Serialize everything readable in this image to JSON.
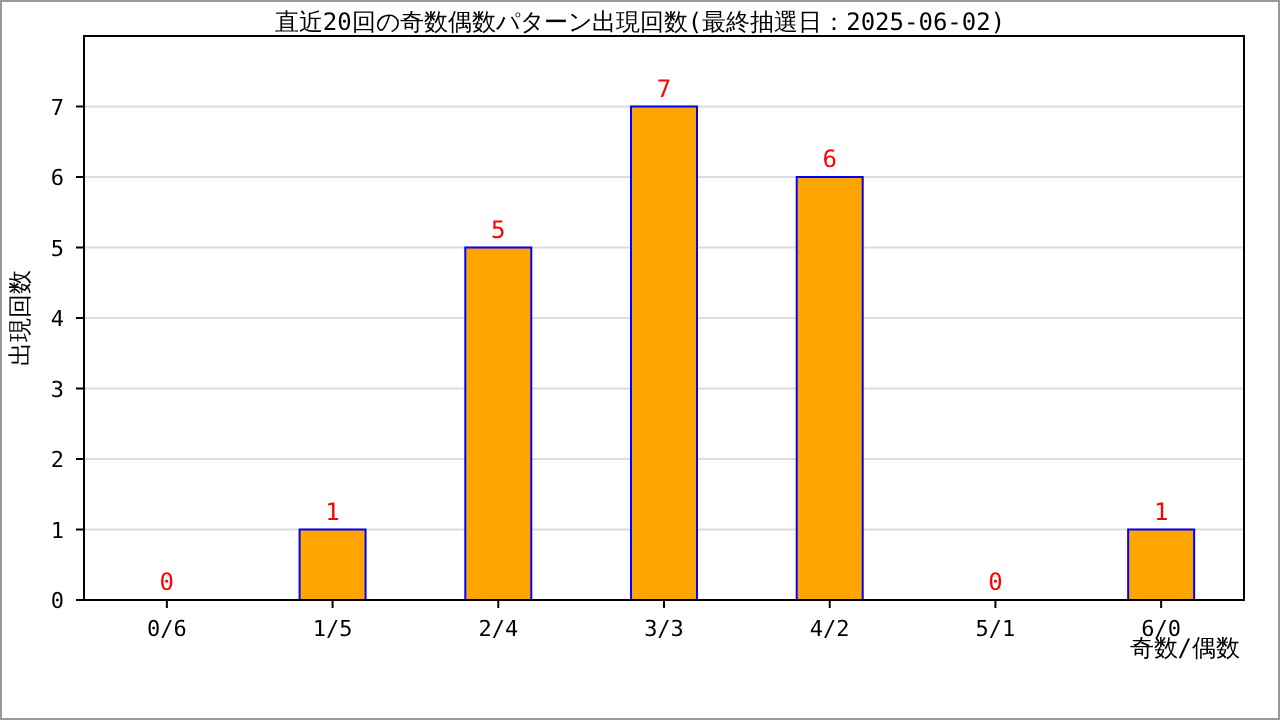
{
  "chart_data": {
    "type": "bar",
    "title": "直近20回の奇数偶数パターン出現回数(最終抽選日：2025-06-02)",
    "xlabel": "奇数/偶数",
    "ylabel": "出現回数",
    "categories": [
      "0/6",
      "1/5",
      "2/4",
      "3/3",
      "4/2",
      "5/1",
      "6/0"
    ],
    "values": [
      0,
      1,
      5,
      7,
      6,
      0,
      1
    ],
    "color": "#ffa500",
    "ylim": [
      0,
      8
    ],
    "yticks": [
      0,
      1,
      2,
      3,
      4,
      5,
      6,
      7
    ],
    "grid": "y",
    "data_labels": true
  }
}
